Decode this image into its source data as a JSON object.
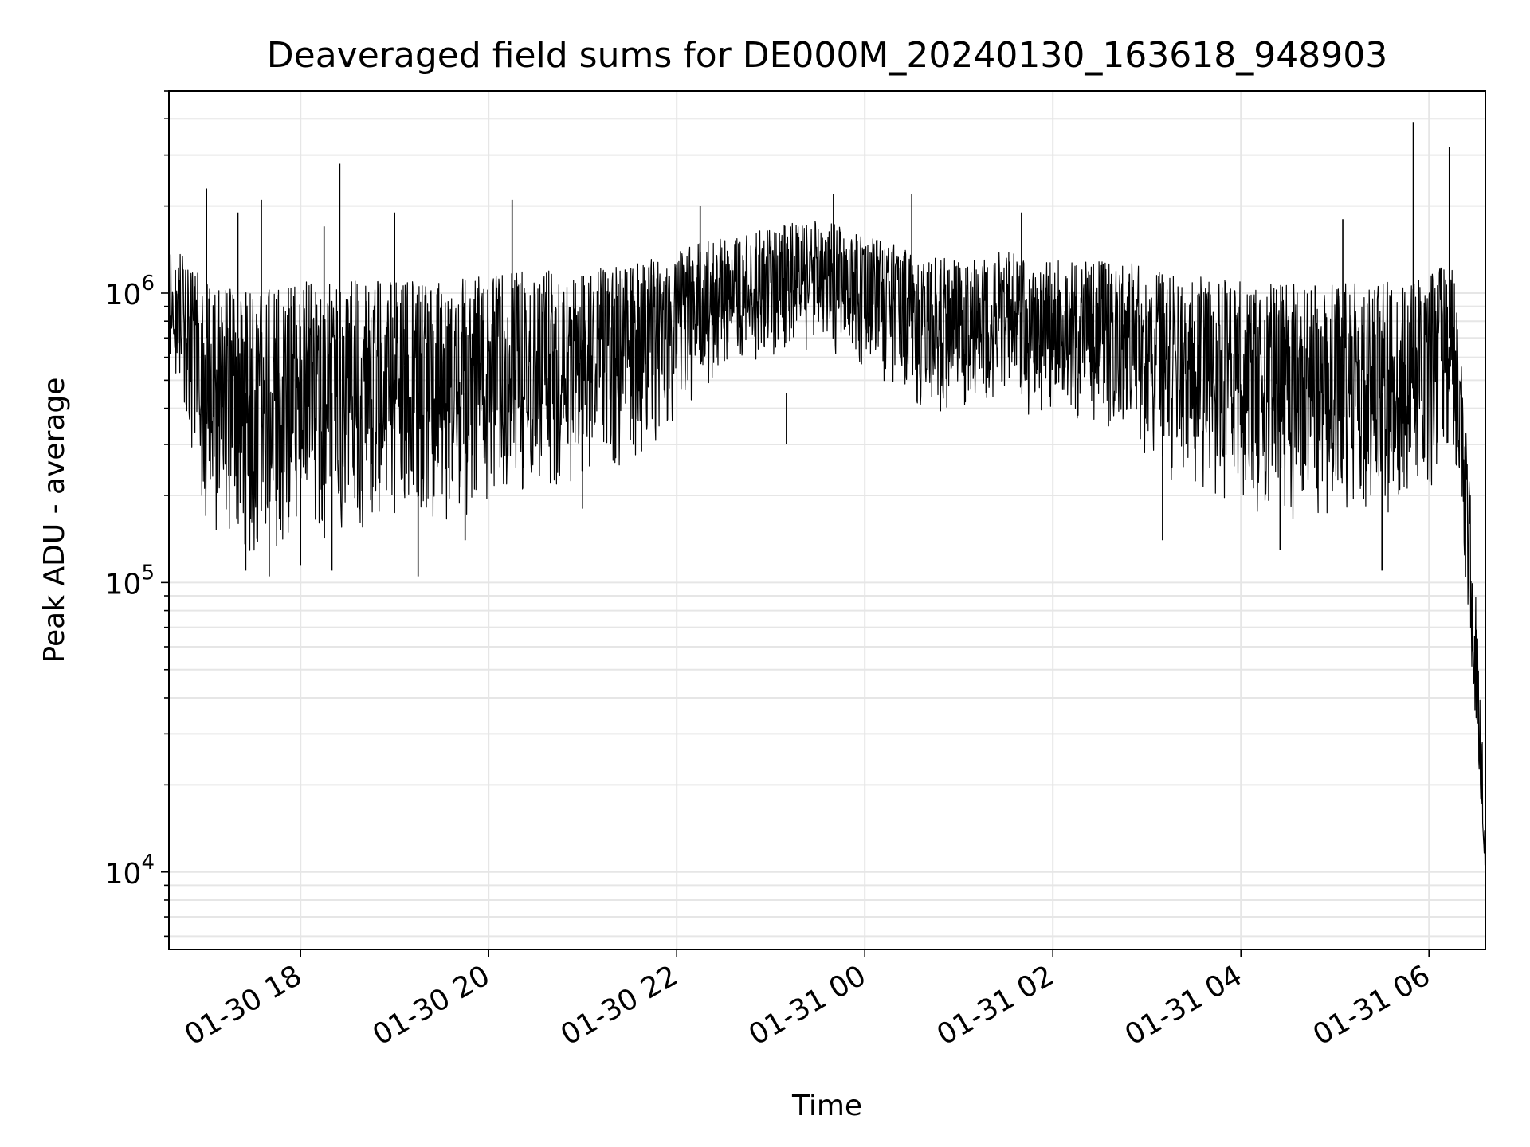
{
  "chart_data": {
    "type": "line",
    "title": "Deaveraged field sums for DE000M_20240130_163618_948903",
    "xlabel": "Time",
    "ylabel": "Peak ADU - average",
    "y_scale": "log",
    "ylim": [
      5400,
      5000000
    ],
    "xlim": [
      "2024-01-30 16:36",
      "2024-01-31 06:36"
    ],
    "x_ticks": [
      "01-30 18",
      "01-30 20",
      "01-30 22",
      "01-31 00",
      "01-31 02",
      "01-31 04",
      "01-31 06"
    ],
    "x_tick_times": [
      "2024-01-30 18:00",
      "2024-01-30 20:00",
      "2024-01-30 22:00",
      "2024-01-31 00:00",
      "2024-01-31 02:00",
      "2024-01-31 04:00",
      "2024-01-31 06:00"
    ],
    "y_ticks": [
      "10^4",
      "10^5",
      "10^6"
    ],
    "y_tick_values": [
      10000,
      100000,
      1000000
    ],
    "grid": true,
    "legend": "none",
    "line_color": "#000000",
    "envelope": {
      "description_of_series": "dense noisy signal",
      "time": [
        "2024-01-30 16:36",
        "2024-01-30 17:00",
        "2024-01-30 17:30",
        "2024-01-30 18:00",
        "2024-01-30 18:30",
        "2024-01-30 19:00",
        "2024-01-30 19:30",
        "2024-01-30 20:00",
        "2024-01-30 20:30",
        "2024-01-30 21:00",
        "2024-01-30 21:30",
        "2024-01-30 22:00",
        "2024-01-30 22:30",
        "2024-01-30 23:00",
        "2024-01-30 23:30",
        "2024-01-31 00:00",
        "2024-01-31 00:30",
        "2024-01-31 01:00",
        "2024-01-31 01:30",
        "2024-01-31 02:00",
        "2024-01-31 02:30",
        "2024-01-31 03:00",
        "2024-01-31 03:30",
        "2024-01-31 04:00",
        "2024-01-31 04:30",
        "2024-01-31 05:00",
        "2024-01-31 05:30",
        "2024-01-31 06:00",
        "2024-01-31 06:15",
        "2024-01-31 06:25",
        "2024-01-31 06:36"
      ],
      "median": [
        900000,
        500000,
        350000,
        380000,
        450000,
        450000,
        480000,
        500000,
        520000,
        600000,
        650000,
        800000,
        950000,
        1000000,
        1100000,
        1000000,
        800000,
        750000,
        800000,
        750000,
        700000,
        650000,
        550000,
        480000,
        450000,
        470000,
        480000,
        500000,
        600000,
        120000,
        10000
      ],
      "low": [
        600000,
        150000,
        120000,
        130000,
        140000,
        150000,
        160000,
        180000,
        200000,
        230000,
        250000,
        350000,
        550000,
        600000,
        650000,
        550000,
        400000,
        380000,
        380000,
        380000,
        350000,
        250000,
        200000,
        180000,
        160000,
        160000,
        170000,
        200000,
        300000,
        80000,
        10000
      ],
      "high": [
        1500000,
        1100000,
        1000000,
        1100000,
        1100000,
        1100000,
        1100000,
        1150000,
        1200000,
        1200000,
        1250000,
        1400000,
        1600000,
        1700000,
        1800000,
        1600000,
        1400000,
        1300000,
        1400000,
        1300000,
        1300000,
        1250000,
        1200000,
        1100000,
        1100000,
        1100000,
        1100000,
        1150000,
        1300000,
        300000,
        20000
      ]
    },
    "spikes": [
      {
        "time": "2024-01-30 17:00",
        "value": 2300000
      },
      {
        "time": "2024-01-30 17:20",
        "value": 1900000
      },
      {
        "time": "2024-01-30 17:35",
        "value": 2100000
      },
      {
        "time": "2024-01-30 18:15",
        "value": 1700000
      },
      {
        "time": "2024-01-30 18:25",
        "value": 2800000
      },
      {
        "time": "2024-01-30 19:00",
        "value": 1900000
      },
      {
        "time": "2024-01-30 20:15",
        "value": 2100000
      },
      {
        "time": "2024-01-30 22:15",
        "value": 2000000
      },
      {
        "time": "2024-01-30 23:40",
        "value": 2200000
      },
      {
        "time": "2024-01-31 00:30",
        "value": 2200000
      },
      {
        "time": "2024-01-31 01:40",
        "value": 1900000
      },
      {
        "time": "2024-01-31 05:05",
        "value": 1800000
      },
      {
        "time": "2024-01-31 05:50",
        "value": 3900000
      },
      {
        "time": "2024-01-31 06:13",
        "value": 3200000
      }
    ],
    "dips": [
      {
        "time": "2024-01-30 17:25",
        "value": 110000
      },
      {
        "time": "2024-01-30 17:40",
        "value": 105000
      },
      {
        "time": "2024-01-30 18:00",
        "value": 115000
      },
      {
        "time": "2024-01-30 18:20",
        "value": 110000
      },
      {
        "time": "2024-01-30 19:15",
        "value": 105000
      },
      {
        "time": "2024-01-30 19:45",
        "value": 140000
      },
      {
        "time": "2024-01-30 21:00",
        "value": 180000
      },
      {
        "time": "2024-01-30 23:10",
        "value": 300000
      },
      {
        "time": "2024-01-31 03:10",
        "value": 140000
      },
      {
        "time": "2024-01-31 04:25",
        "value": 130000
      },
      {
        "time": "2024-01-31 05:30",
        "value": 110000
      }
    ]
  }
}
